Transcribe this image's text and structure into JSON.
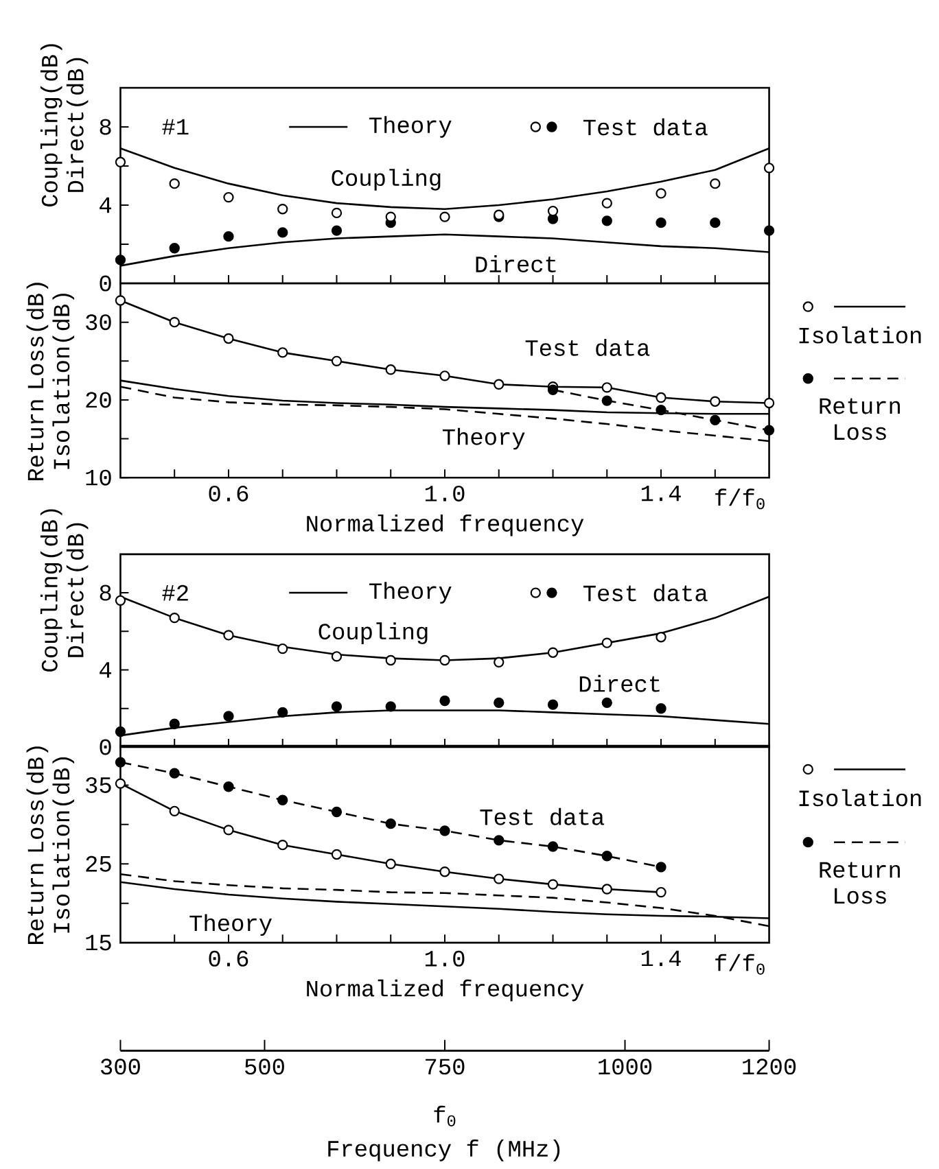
{
  "chart_data": [
    {
      "type": "line",
      "ylabel": "Coupling(dB) Direct(dB)",
      "xlim": [
        0.4,
        1.6
      ],
      "ylim": [
        0,
        10
      ],
      "tick_labels": "y",
      "legend": "top",
      "xticks": [
        {
          "value": 0.5,
          "label": null
        },
        {
          "value": 0.6,
          "label": null
        },
        {
          "value": 0.7,
          "label": null
        },
        {
          "value": 0.8,
          "label": null
        },
        {
          "value": 0.9,
          "label": null
        },
        {
          "value": 1.0,
          "label": null
        },
        {
          "value": 1.1,
          "label": null
        },
        {
          "value": 1.2,
          "label": null
        },
        {
          "value": 1.3,
          "label": null
        },
        {
          "value": 1.4,
          "label": null
        },
        {
          "value": 1.5,
          "label": null
        }
      ],
      "yticks": [
        0,
        {
          "value": 2,
          "label": null
        },
        4,
        {
          "value": 6,
          "label": null
        },
        8
      ],
      "series": [
        {
          "name": "Theory",
          "type": "line",
          "color": "#000000",
          "line_style": "solid",
          "marker": "none",
          "x": [
            0.4,
            0.5,
            0.6,
            0.7,
            0.8,
            0.9,
            1.0,
            1.1,
            1.2,
            1.3,
            1.4,
            1.5,
            1.6
          ],
          "values": [
            6.9,
            5.9,
            5.1,
            4.5,
            4.1,
            3.9,
            3.8,
            4.0,
            4.3,
            4.7,
            5.2,
            5.8,
            6.9
          ]
        },
        {
          "type": "line",
          "color": "#000000",
          "line_style": "solid",
          "marker": "none",
          "x": [
            0.4,
            0.5,
            0.6,
            0.7,
            0.8,
            0.9,
            1.0,
            1.1,
            1.2,
            1.3,
            1.4,
            1.5,
            1.6
          ],
          "values": [
            0.9,
            1.4,
            1.8,
            2.1,
            2.3,
            2.4,
            2.5,
            2.4,
            2.3,
            2.1,
            1.9,
            1.8,
            1.6
          ]
        },
        {
          "name": "Test data",
          "type": "scatter",
          "color": "#000000",
          "marker": "circle",
          "x": [
            0.4,
            0.5,
            0.6,
            0.7,
            0.8,
            0.9,
            1.1,
            1.2,
            1.3,
            1.4,
            1.5,
            1.6
          ],
          "values": [
            1.2,
            1.8,
            2.4,
            2.6,
            2.7,
            3.1,
            3.4,
            3.3,
            3.2,
            3.1,
            3.1,
            2.7
          ]
        },
        {
          "type": "scatter",
          "color": "#ffffff",
          "marker": "circle",
          "x": [
            0.4,
            0.5,
            0.6,
            0.7,
            0.8,
            0.9,
            1.0,
            1.1,
            1.2,
            1.3,
            1.4,
            1.5,
            1.6
          ],
          "values": [
            6.2,
            5.1,
            4.4,
            3.8,
            3.6,
            3.4,
            3.4,
            3.5,
            3.7,
            4.1,
            4.6,
            5.1,
            5.9
          ]
        }
      ],
      "annotations": [
        "#1",
        "Coupling",
        "Direct"
      ]
    },
    {
      "type": "line",
      "ylabel": "Return Loss(dB) Isolation(dB)",
      "xlabel": "Normalized frequency",
      "xlim": [
        0.4,
        1.6
      ],
      "ylim": [
        10,
        35
      ],
      "legend": "right",
      "xticks": [
        {
          "value": 0.5,
          "label": null
        },
        {
          "value": 0.6,
          "label": "0.6"
        },
        {
          "value": 0.7,
          "label": null
        },
        {
          "value": 0.8,
          "label": null
        },
        {
          "value": 0.9,
          "label": null
        },
        {
          "value": 1.0,
          "label": "1.0"
        },
        {
          "value": 1.1,
          "label": null
        },
        {
          "value": 1.2,
          "label": null
        },
        {
          "value": 1.3,
          "label": null
        },
        {
          "value": 1.4,
          "label": "1.4"
        },
        {
          "value": 1.5,
          "label": null
        }
      ],
      "yticks": [
        10,
        {
          "value": 15,
          "label": null
        },
        20,
        {
          "value": 25,
          "label": null
        },
        30
      ],
      "series": [
        {
          "type": "line",
          "color": "#000000",
          "line_style": "solid",
          "marker": "none",
          "x": [
            0.4,
            0.5,
            0.6,
            0.7,
            0.8,
            0.9,
            1.0,
            1.1,
            1.2,
            1.3,
            1.4,
            1.5,
            1.6
          ],
          "values": [
            22.5,
            21.4,
            20.5,
            19.9,
            19.6,
            19.4,
            19.1,
            18.9,
            18.7,
            18.4,
            18.3,
            18.2,
            18.2
          ]
        },
        {
          "type": "line",
          "color": "#000000",
          "line_style": "dashed",
          "marker": "none",
          "x": [
            0.4,
            0.5,
            0.6,
            0.7,
            0.8,
            0.9,
            1.0,
            1.1,
            1.2,
            1.3,
            1.4,
            1.5,
            1.6
          ],
          "values": [
            21.7,
            20.3,
            19.7,
            19.4,
            19.3,
            19.1,
            18.8,
            18.2,
            17.6,
            16.9,
            16.1,
            15.4,
            14.7
          ]
        },
        {
          "name": "Isolation",
          "type": "scatter",
          "color": "#ffffff",
          "marker": "circle",
          "x": [
            0.4,
            0.5,
            0.6,
            0.7,
            0.8,
            0.9,
            1.0,
            1.1,
            1.2,
            1.3,
            1.4,
            1.5,
            1.6
          ],
          "values": [
            32.8,
            30.0,
            27.9,
            26.1,
            25.0,
            23.9,
            23.1,
            22.0,
            21.7,
            21.6,
            20.3,
            19.8,
            19.6
          ]
        },
        {
          "type": "line",
          "color": "#000000",
          "line_style": "solid",
          "marker": "none",
          "x": [
            0.4,
            0.5,
            0.6,
            0.7,
            0.8,
            0.9,
            1.0,
            1.1,
            1.2,
            1.3,
            1.4,
            1.5,
            1.6
          ],
          "values": [
            32.8,
            30.0,
            27.9,
            26.1,
            25.0,
            23.9,
            23.1,
            22.0,
            21.7,
            21.6,
            20.3,
            19.8,
            19.6
          ]
        },
        {
          "name": "Return Loss",
          "type": "scatter",
          "color": "#000000",
          "marker": "circle",
          "x": [
            1.2,
            1.3,
            1.4,
            1.5,
            1.6
          ],
          "values": [
            21.3,
            19.9,
            18.7,
            17.4,
            16.1
          ]
        },
        {
          "type": "line",
          "color": "#000000",
          "line_style": "dashed",
          "marker": "none",
          "x": [
            1.2,
            1.3,
            1.4,
            1.5,
            1.6
          ],
          "values": [
            21.3,
            19.9,
            18.7,
            17.4,
            16.1
          ]
        }
      ],
      "annotations": [
        "f/f$_{0}$",
        "Test data",
        "Theory"
      ]
    },
    {
      "type": "line",
      "ylabel": "Coupling(dB) Direct(dB)",
      "xlim": [
        0.4,
        1.6
      ],
      "ylim": [
        0,
        10
      ],
      "tick_labels": "y",
      "legend": "top",
      "xticks": [
        {
          "value": 0.5,
          "label": null
        },
        {
          "value": 0.6,
          "label": null
        },
        {
          "value": 0.7,
          "label": null
        },
        {
          "value": 0.8,
          "label": null
        },
        {
          "value": 0.9,
          "label": null
        },
        {
          "value": 1.0,
          "label": null
        },
        {
          "value": 1.1,
          "label": null
        },
        {
          "value": 1.2,
          "label": null
        },
        {
          "value": 1.3,
          "label": null
        },
        {
          "value": 1.4,
          "label": null
        },
        {
          "value": 1.5,
          "label": null
        }
      ],
      "yticks": [
        0,
        {
          "value": 2,
          "label": null
        },
        4,
        {
          "value": 6,
          "label": null
        },
        8
      ],
      "series": [
        {
          "name": "Theory",
          "type": "line",
          "color": "#000000",
          "line_style": "solid",
          "marker": "none",
          "x": [
            0.4,
            0.5,
            0.6,
            0.7,
            0.8,
            0.9,
            1.0,
            1.1,
            1.2,
            1.3,
            1.4,
            1.5,
            1.6
          ],
          "values": [
            7.8,
            6.7,
            5.8,
            5.2,
            4.8,
            4.6,
            4.5,
            4.6,
            4.9,
            5.4,
            5.9,
            6.7,
            7.8
          ]
        },
        {
          "type": "line",
          "color": "#000000",
          "line_style": "solid",
          "marker": "none",
          "x": [
            0.4,
            0.5,
            0.6,
            0.7,
            0.8,
            0.9,
            1.0,
            1.1,
            1.2,
            1.3,
            1.4,
            1.5,
            1.6
          ],
          "values": [
            0.6,
            1.0,
            1.3,
            1.6,
            1.8,
            1.9,
            1.9,
            1.9,
            1.8,
            1.7,
            1.6,
            1.4,
            1.2
          ]
        },
        {
          "name": "Test data",
          "type": "scatter",
          "color": "#000000",
          "marker": "circle",
          "x": [
            0.4,
            0.5,
            0.6,
            0.7,
            0.8,
            0.9,
            1.0,
            1.1,
            1.2,
            1.3,
            1.4
          ],
          "values": [
            0.8,
            1.2,
            1.6,
            1.8,
            2.1,
            2.1,
            2.4,
            2.3,
            2.2,
            2.3,
            2.0
          ]
        },
        {
          "type": "scatter",
          "color": "#ffffff",
          "marker": "circle",
          "x": [
            0.4,
            0.5,
            0.6,
            0.7,
            0.8,
            0.9,
            1.0,
            1.1,
            1.2,
            1.3,
            1.4
          ],
          "values": [
            7.6,
            6.7,
            5.8,
            5.1,
            4.7,
            4.5,
            4.5,
            4.4,
            4.9,
            5.4,
            5.7
          ]
        }
      ],
      "annotations": [
        "#2",
        "Coupling",
        "Direct"
      ]
    },
    {
      "type": "line",
      "ylabel": "Return Loss(dB) Isolation(dB)",
      "xlabel": "Normalized frequency",
      "xlim": [
        0.4,
        1.6
      ],
      "ylim": [
        15,
        40
      ],
      "legend": "right",
      "xticks": [
        {
          "value": 0.5,
          "label": null
        },
        {
          "value": 0.6,
          "label": "0.6"
        },
        {
          "value": 0.7,
          "label": null
        },
        {
          "value": 0.8,
          "label": null
        },
        {
          "value": 0.9,
          "label": null
        },
        {
          "value": 1.0,
          "label": "1.0"
        },
        {
          "value": 1.1,
          "label": null
        },
        {
          "value": 1.2,
          "label": null
        },
        {
          "value": 1.3,
          "label": null
        },
        {
          "value": 1.4,
          "label": "1.4"
        },
        {
          "value": 1.5,
          "label": null
        }
      ],
      "yticks": [
        15,
        {
          "value": 20,
          "label": null
        },
        25,
        {
          "value": 30,
          "label": null
        },
        35
      ],
      "x2lim": [
        300,
        1200
      ],
      "x2ticks": [
        300,
        500,
        750,
        1000,
        1200
      ],
      "x2label": "Frequency f (MHz)",
      "series": [
        {
          "type": "line",
          "color": "#000000",
          "line_style": "solid",
          "marker": "none",
          "x": [
            0.4,
            0.5,
            0.6,
            0.7,
            0.8,
            0.9,
            1.0,
            1.1,
            1.2,
            1.3,
            1.4,
            1.5,
            1.6
          ],
          "values": [
            22.7,
            21.8,
            21.1,
            20.6,
            20.2,
            19.9,
            19.6,
            19.3,
            18.9,
            18.6,
            18.4,
            18.3,
            18.1
          ]
        },
        {
          "type": "line",
          "color": "#000000",
          "line_style": "dashed",
          "marker": "none",
          "x": [
            0.4,
            0.5,
            0.6,
            0.7,
            0.8,
            0.9,
            1.0,
            1.1,
            1.2,
            1.3,
            1.4,
            1.5,
            1.6
          ],
          "values": [
            23.7,
            22.8,
            22.3,
            21.9,
            21.7,
            21.4,
            21.3,
            21.0,
            20.7,
            20.1,
            19.4,
            18.4,
            17.1
          ]
        },
        {
          "name": "Isolation",
          "type": "scatter",
          "color": "#ffffff",
          "marker": "circle",
          "x": [
            0.4,
            0.5,
            0.6,
            0.7,
            0.8,
            0.9,
            1.0,
            1.1,
            1.2,
            1.3,
            1.4
          ],
          "values": [
            35.2,
            31.7,
            29.3,
            27.4,
            26.2,
            25.0,
            24.0,
            23.1,
            22.4,
            21.8,
            21.4
          ]
        },
        {
          "type": "line",
          "color": "#000000",
          "line_style": "solid",
          "marker": "none",
          "x": [
            0.4,
            0.5,
            0.6,
            0.7,
            0.8,
            0.9,
            1.0,
            1.1,
            1.2,
            1.3,
            1.4
          ],
          "values": [
            35.2,
            31.7,
            29.3,
            27.4,
            26.2,
            25.0,
            24.0,
            23.1,
            22.4,
            21.8,
            21.4
          ]
        },
        {
          "name": "Return Loss",
          "type": "scatter",
          "color": "#000000",
          "marker": "circle",
          "x": [
            0.4,
            0.5,
            0.6,
            0.7,
            0.8,
            0.9,
            1.0,
            1.1,
            1.2,
            1.3,
            1.4
          ],
          "values": [
            37.9,
            36.5,
            34.8,
            33.1,
            31.6,
            30.1,
            29.2,
            28.0,
            27.2,
            26.0,
            24.6
          ]
        },
        {
          "type": "line",
          "color": "#000000",
          "line_style": "dashed",
          "marker": "none",
          "x": [
            0.4,
            0.5,
            0.6,
            0.7,
            0.8,
            0.9,
            1.0,
            1.1,
            1.2,
            1.3,
            1.4
          ],
          "values": [
            37.9,
            36.5,
            34.8,
            33.1,
            31.6,
            30.1,
            29.2,
            28.0,
            27.2,
            26.0,
            24.6
          ]
        }
      ],
      "annotations": [
        "f/f$_{0}$",
        "Test data",
        "Theory",
        "f$_{0}$"
      ]
    }
  ]
}
